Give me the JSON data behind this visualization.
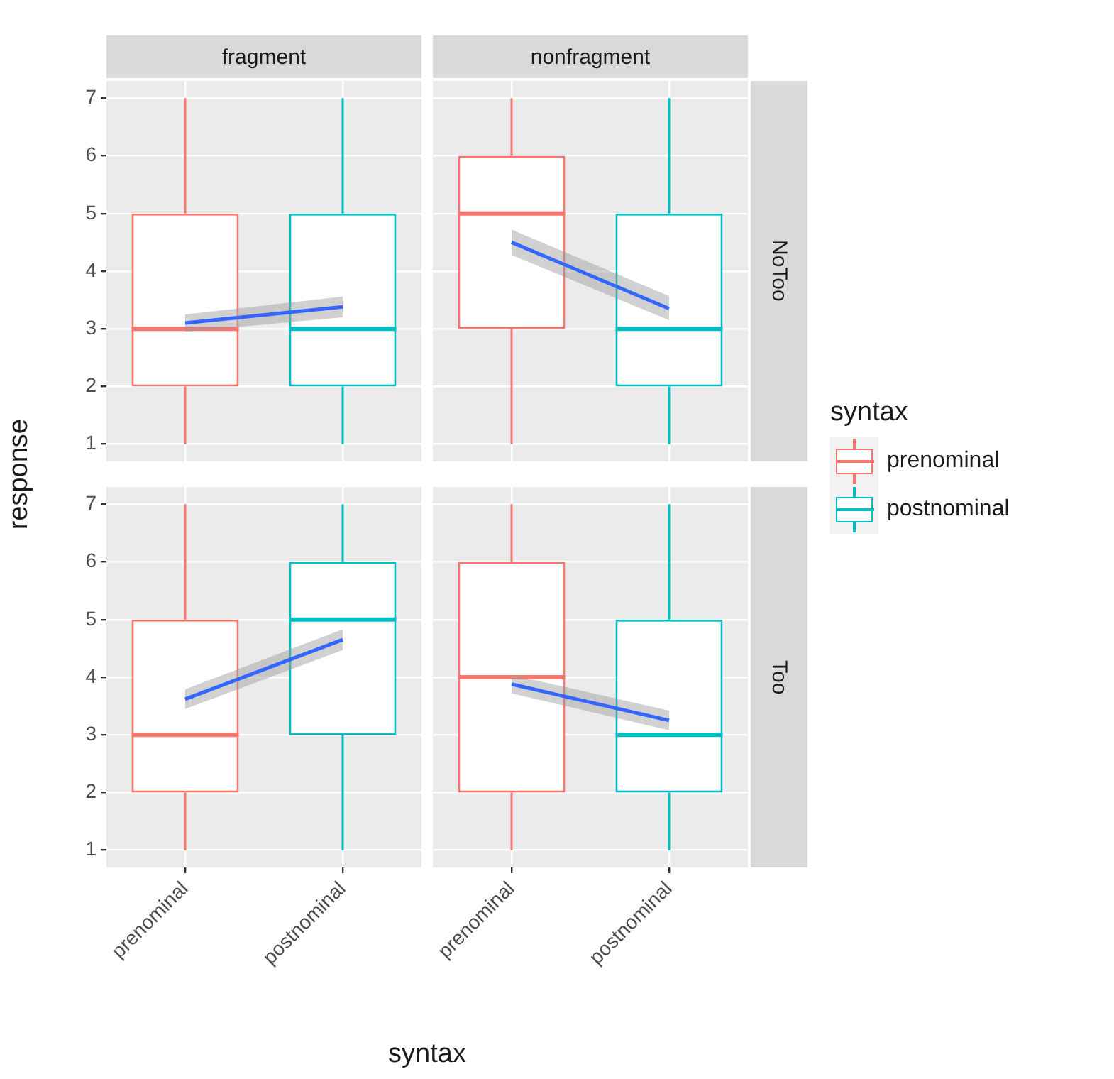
{
  "chart_data": [
    {
      "type": "box",
      "title": "fragment",
      "ylabel": "response",
      "categories": [
        "prenominal",
        "postnominal"
      ],
      "ylim": [
        0.7,
        7.3
      ],
      "yticks": [
        1,
        2,
        3,
        4,
        5,
        6,
        7
      ],
      "grid": true,
      "tick_labels": "y",
      "series": [
        {
          "color": "#f8766d",
          "boxes": [
            {
              "low": 1,
              "q1": 2,
              "median": 3,
              "q3": 5,
              "high": 7
            },
            null
          ]
        },
        {
          "color": "#00bfc4",
          "boxes": [
            null,
            {
              "low": 1,
              "q1": 2,
              "median": 3,
              "q3": 5,
              "high": 7
            }
          ]
        },
        {
          "type": "line",
          "color": "#3366ff",
          "x": [
            "prenominal",
            "postnominal"
          ],
          "values": [
            3.1,
            3.38
          ],
          "lower": [
            2.95,
            3.2
          ],
          "upper": [
            3.25,
            3.56
          ]
        }
      ]
    },
    {
      "type": "box",
      "title": "nonfragment",
      "y2label": "NoToo",
      "legend": "right",
      "legend_title": "syntax",
      "categories": [
        "prenominal",
        "postnominal"
      ],
      "ylim": [
        0.7,
        7.3
      ],
      "yticks": [
        1,
        2,
        3,
        4,
        5,
        6,
        7
      ],
      "grid": true,
      "tick_labels": false,
      "series": [
        {
          "name": "prenominal",
          "color": "#f8766d",
          "boxes": [
            {
              "low": 1,
              "q1": 3,
              "median": 5,
              "q3": 6,
              "high": 7
            },
            null
          ]
        },
        {
          "name": "postnominal",
          "color": "#00bfc4",
          "boxes": [
            null,
            {
              "low": 1,
              "q1": 2,
              "median": 3,
              "q3": 5,
              "high": 7
            }
          ]
        },
        {
          "type": "line",
          "color": "#3366ff",
          "x": [
            "prenominal",
            "postnominal"
          ],
          "values": [
            4.5,
            3.35
          ],
          "lower": [
            4.28,
            3.15
          ],
          "upper": [
            4.72,
            3.57
          ]
        }
      ]
    },
    {
      "type": "box",
      "xlabel": "syntax",
      "categories": [
        "prenominal",
        "postnominal"
      ],
      "ylim": [
        0.7,
        7.3
      ],
      "yticks": [
        1,
        2,
        3,
        4,
        5,
        6,
        7
      ],
      "grid": true,
      "series": [
        {
          "color": "#f8766d",
          "boxes": [
            {
              "low": 1,
              "q1": 2,
              "median": 3,
              "q3": 5,
              "high": 7
            },
            null
          ]
        },
        {
          "color": "#00bfc4",
          "boxes": [
            null,
            {
              "low": 1,
              "q1": 3,
              "median": 5,
              "q3": 6,
              "high": 7
            }
          ]
        },
        {
          "type": "line",
          "color": "#3366ff",
          "x": [
            "prenominal",
            "postnominal"
          ],
          "values": [
            3.62,
            4.65
          ],
          "lower": [
            3.45,
            4.47
          ],
          "upper": [
            3.79,
            4.83
          ]
        }
      ]
    },
    {
      "type": "box",
      "y2label": "Too",
      "categories": [
        "prenominal",
        "postnominal"
      ],
      "ylim": [
        0.7,
        7.3
      ],
      "yticks": [
        1,
        2,
        3,
        4,
        5,
        6,
        7
      ],
      "grid": true,
      "tick_labels": "x",
      "series": [
        {
          "color": "#f8766d",
          "boxes": [
            {
              "low": 1,
              "q1": 2,
              "median": 4,
              "q3": 6,
              "high": 7
            },
            null
          ]
        },
        {
          "color": "#00bfc4",
          "boxes": [
            null,
            {
              "low": 1,
              "q1": 2,
              "median": 3,
              "q3": 5,
              "high": 7
            }
          ]
        },
        {
          "type": "line",
          "color": "#3366ff",
          "x": [
            "prenominal",
            "postnominal"
          ],
          "values": [
            3.88,
            3.25
          ],
          "lower": [
            3.72,
            3.08
          ],
          "upper": [
            4.04,
            3.42
          ]
        }
      ]
    }
  ]
}
